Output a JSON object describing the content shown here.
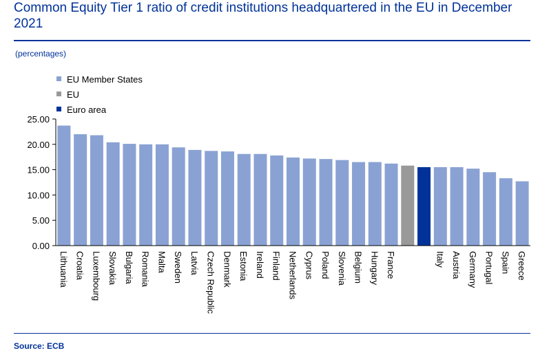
{
  "header": {
    "title": "Common Equity Tier 1 ratio of credit institutions headquartered in the EU in December 2021",
    "unit": "(percentages)"
  },
  "footer": {
    "source": "Source: ECB"
  },
  "colors": {
    "member": "#8aa2d3",
    "eu": "#999999",
    "euro_area": "#003299",
    "title": "#003299"
  },
  "chart_data": {
    "type": "bar",
    "title": "Common Equity Tier 1 ratio of credit institutions headquartered in the EU in December 2021",
    "ylabel": "",
    "xlabel": "",
    "ylim": [
      0,
      25
    ],
    "yticks": [
      "0.00",
      "5.00",
      "10.00",
      "15.00",
      "20.00",
      "25.00"
    ],
    "grid": false,
    "legend_position": "top-left",
    "legend": [
      {
        "name": "EU Member States",
        "group": "member"
      },
      {
        "name": "EU",
        "group": "eu"
      },
      {
        "name": "Euro area",
        "group": "euro_area"
      }
    ],
    "categories": [
      "Lithuania",
      "Croatia",
      "Luxembourg",
      "Slovakia",
      "Bulgaria",
      "Romania",
      "Malta",
      "Sweden",
      "Latvia",
      "Czech Republic",
      "Denmark",
      "Estonia",
      "Ireland",
      "Finland",
      "Netherlands",
      "Cyprus",
      "Poland",
      "Slovenia",
      "Belgium",
      "Hungary",
      "France",
      "",
      "",
      "Italy",
      "Austria",
      "Germany",
      "Portugal",
      "Spain",
      "Greece"
    ],
    "groups": [
      "member",
      "member",
      "member",
      "member",
      "member",
      "member",
      "member",
      "member",
      "member",
      "member",
      "member",
      "member",
      "member",
      "member",
      "member",
      "member",
      "member",
      "member",
      "member",
      "member",
      "member",
      "eu",
      "euro_area",
      "member",
      "member",
      "member",
      "member",
      "member",
      "member"
    ],
    "values": [
      23.7,
      22.0,
      21.8,
      20.4,
      20.1,
      20.0,
      20.0,
      19.4,
      18.9,
      18.7,
      18.6,
      18.1,
      18.1,
      17.8,
      17.4,
      17.2,
      17.1,
      16.9,
      16.5,
      16.5,
      16.2,
      15.8,
      15.5,
      15.5,
      15.5,
      15.2,
      14.5,
      13.3,
      12.7
    ]
  }
}
